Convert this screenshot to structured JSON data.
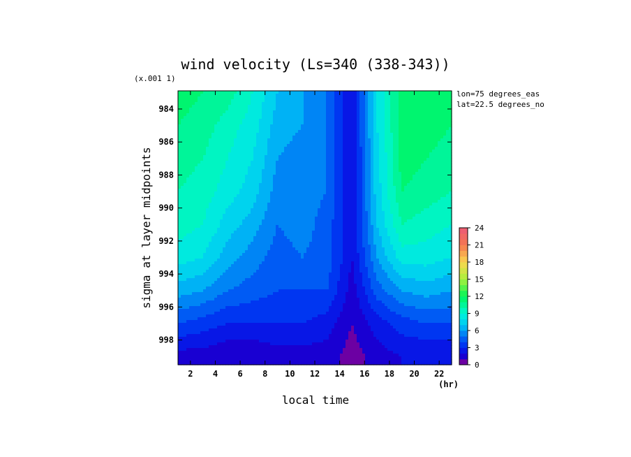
{
  "chart_data": {
    "type": "heatmap",
    "title": "wind velocity (Ls=340 (338-343))",
    "xlabel": "local time",
    "ylabel": "sigma at layer midpoints",
    "x_unit": "(hr)",
    "y_scale_note": "(x.001 1)",
    "annotations": [
      "lon=75 degrees_eas",
      "lat=22.5 degrees_no"
    ],
    "x_ticks": [
      "2",
      "4",
      "6",
      "8",
      "10",
      "12",
      "14",
      "16",
      "18",
      "20",
      "22"
    ],
    "y_ticks": [
      "984",
      "986",
      "988",
      "990",
      "992",
      "994",
      "996",
      "998"
    ],
    "xlim": [
      1,
      23
    ],
    "ylim_sigma_x1000": [
      999.5,
      982.9
    ],
    "colorbar": {
      "ticks": [
        "0",
        "3",
        "6",
        "9",
        "12",
        "15",
        "18",
        "21",
        "24"
      ],
      "range": [
        0,
        24
      ],
      "step": 1
    },
    "x": [
      1,
      3,
      5,
      7,
      9,
      11,
      13,
      15,
      17,
      19,
      21,
      23
    ],
    "y": [
      983,
      985,
      987,
      989,
      991,
      993,
      995,
      997,
      999
    ],
    "values": [
      [
        11.5,
        11.0,
        10.5,
        9.0,
        7.0,
        6.0,
        5.0,
        2.0,
        8.0,
        11.5,
        11.5,
        11.0
      ],
      [
        11.0,
        10.5,
        9.5,
        8.5,
        6.5,
        6.0,
        5.0,
        2.0,
        8.0,
        11.5,
        11.5,
        11.0
      ],
      [
        10.5,
        10.0,
        9.0,
        8.0,
        6.0,
        5.5,
        5.0,
        2.0,
        7.5,
        11.5,
        11.0,
        10.5
      ],
      [
        10.0,
        9.5,
        8.5,
        7.5,
        5.5,
        5.5,
        5.0,
        2.0,
        7.5,
        11.0,
        10.5,
        10.0
      ],
      [
        9.5,
        9.0,
        7.5,
        6.5,
        5.0,
        5.5,
        4.5,
        2.0,
        7.0,
        10.0,
        9.5,
        9.0
      ],
      [
        8.5,
        8.0,
        6.5,
        5.5,
        4.5,
        5.0,
        4.5,
        2.0,
        6.0,
        8.5,
        8.5,
        8.0
      ],
      [
        6.5,
        6.0,
        5.0,
        4.5,
        4.0,
        4.0,
        4.0,
        1.5,
        4.5,
        6.0,
        6.5,
        6.0
      ],
      [
        4.0,
        3.5,
        3.0,
        3.0,
        3.0,
        3.0,
        2.5,
        1.0,
        2.5,
        3.5,
        4.0,
        4.0
      ],
      [
        1.5,
        1.5,
        1.0,
        1.0,
        1.5,
        1.5,
        1.5,
        0.5,
        1.5,
        2.0,
        2.0,
        2.0
      ]
    ]
  }
}
